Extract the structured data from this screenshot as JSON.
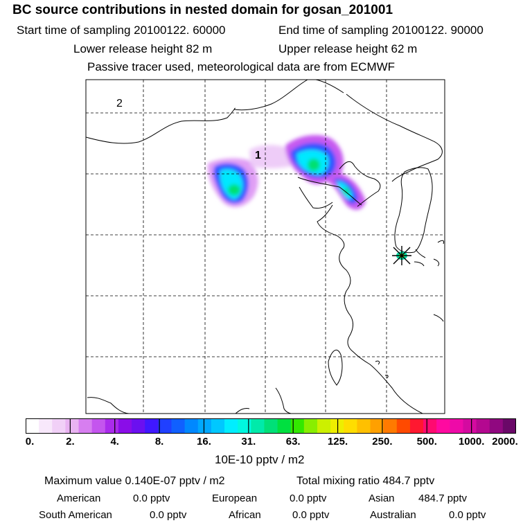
{
  "header": {
    "title": "BC  source contributions in nested domain for gosan_201001",
    "start_time": "Start time of sampling 20100122. 60000",
    "end_time": "End time of sampling 20100122. 90000",
    "lower_height": "Lower release height   82 m",
    "upper_height": "Upper release height   62 m",
    "tracer_note": "Passive tracer used, meteorological data are from ECMWF"
  },
  "map": {
    "labels": {
      "release_1": "1",
      "release_2": "2"
    }
  },
  "colorbar": {
    "colors": [
      "#ffffff",
      "#f8e8fb",
      "#f1d0f7",
      "#e9b3f2",
      "#d77ef0",
      "#c455ee",
      "#aa2bec",
      "#8a0de8",
      "#6b10f0",
      "#4018ff",
      "#2040ff",
      "#1060ff",
      "#0088ff",
      "#00a8ff",
      "#00c8ff",
      "#00eeff",
      "#00f8e0",
      "#00eaaa",
      "#00e078",
      "#00e040",
      "#33e800",
      "#88ee00",
      "#ccf000",
      "#eeee00",
      "#ffdd00",
      "#ffc000",
      "#ffa000",
      "#ff7a00",
      "#ff4a00",
      "#ff1830",
      "#ff0a70",
      "#ff0aa0",
      "#ee0aa8",
      "#d40aa0",
      "#b40890",
      "#900880",
      "#6a0868"
    ],
    "tick_labels": [
      "0.",
      "2.",
      "4.",
      "8.",
      "16.",
      "31.",
      "63.",
      "125.",
      "250.",
      "500.",
      "1000.",
      "2000."
    ],
    "units": "10E-10 pptv / m2"
  },
  "stats": {
    "maximum": "Maximum value  0.140E-07 pptv / m2",
    "total_mixing": "Total mixing ratio      484.7 pptv",
    "american_label": "American",
    "american_value": "0.0 pptv",
    "european_label": "European",
    "european_value": "0.0 pptv",
    "asian_label": "Asian",
    "asian_value": "484.7 pptv",
    "south_american_label": "South American",
    "south_american_value": "0.0 pptv",
    "african_label": "African",
    "african_value": "0.0 pptv",
    "australian_label": "Australian",
    "australian_value": "0.0 pptv"
  }
}
